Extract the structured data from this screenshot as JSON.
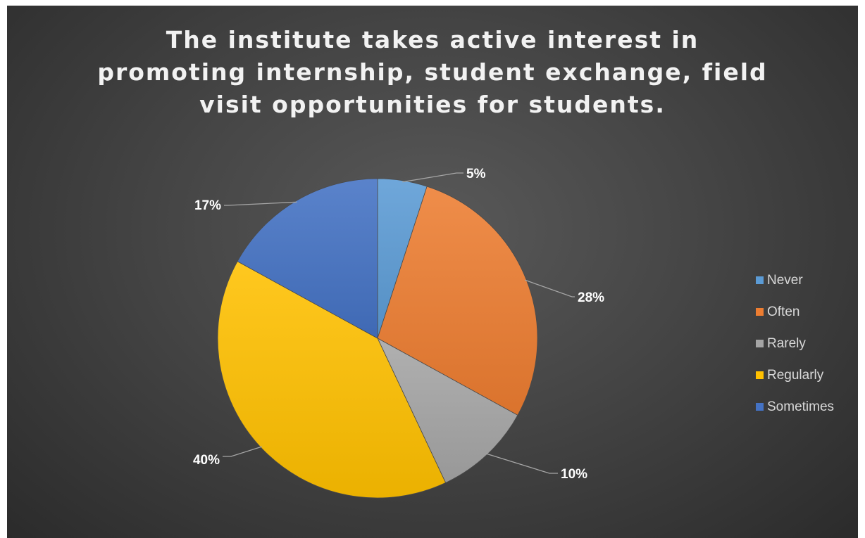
{
  "chart_data": {
    "type": "pie",
    "title": "The institute takes active interest in promoting internship, student exchange, field visit opportunities for students.",
    "categories": [
      "Never",
      "Often",
      "Rarely",
      "Regularly",
      "Sometimes"
    ],
    "values": [
      5,
      28,
      10,
      40,
      17
    ],
    "data_labels": [
      "5%",
      "28%",
      "10%",
      "40%",
      "17%"
    ],
    "colors": [
      "#5b9bd5",
      "#ed7d31",
      "#a5a5a5",
      "#ffc000",
      "#4472c4"
    ],
    "legend_position": "right",
    "start_angle_deg": 0,
    "direction": "clockwise"
  },
  "legend": {
    "items": [
      {
        "label": "Never",
        "color": "#5b9bd5"
      },
      {
        "label": "Often",
        "color": "#ed7d31"
      },
      {
        "label": "Rarely",
        "color": "#a5a5a5"
      },
      {
        "label": "Regularly",
        "color": "#ffc000"
      },
      {
        "label": "Sometimes",
        "color": "#4472c4"
      }
    ]
  }
}
